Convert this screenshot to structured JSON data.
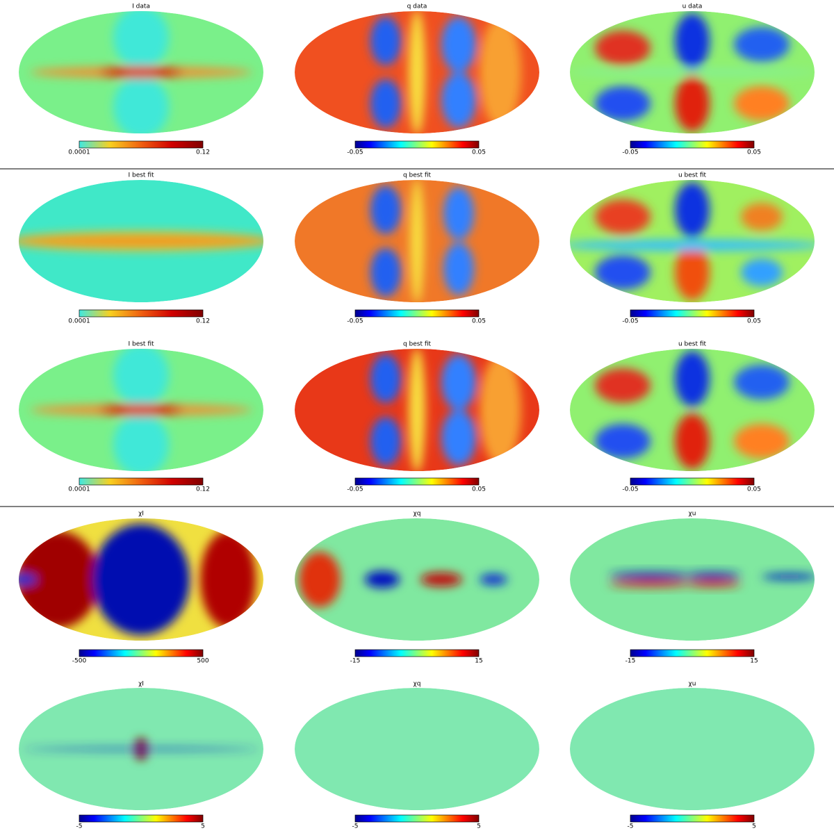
{
  "panels": [
    {
      "title": "I data",
      "cbar_min": "0.0001",
      "cbar_max": "0.12"
    },
    {
      "title": "q data",
      "cbar_min": "-0.05",
      "cbar_max": "0.05"
    },
    {
      "title": "u data",
      "cbar_min": "-0.05",
      "cbar_max": "0.05"
    },
    {
      "title": "I best fit",
      "cbar_min": "0.0001",
      "cbar_max": "0.12"
    },
    {
      "title": "q best fit",
      "cbar_min": "-0.05",
      "cbar_max": "0.05"
    },
    {
      "title": "u best fit",
      "cbar_min": "-0.05",
      "cbar_max": "0.05"
    },
    {
      "title": "I best fit",
      "cbar_min": "0.0001",
      "cbar_max": "0.12"
    },
    {
      "title": "q best fit",
      "cbar_min": "-0.05",
      "cbar_max": "0.05"
    },
    {
      "title": "u best fit",
      "cbar_min": "-0.05",
      "cbar_max": "0.05"
    },
    {
      "title": "χI",
      "cbar_min": "-500",
      "cbar_max": "500"
    },
    {
      "title": "χq",
      "cbar_min": "-15",
      "cbar_max": "15"
    },
    {
      "title": "χu",
      "cbar_min": "-15",
      "cbar_max": "15"
    },
    {
      "title": "χI",
      "cbar_min": "-5",
      "cbar_max": "5"
    },
    {
      "title": "χq",
      "cbar_min": "-5",
      "cbar_max": "5"
    },
    {
      "title": "χu",
      "cbar_min": "-5",
      "cbar_max": "5"
    }
  ]
}
